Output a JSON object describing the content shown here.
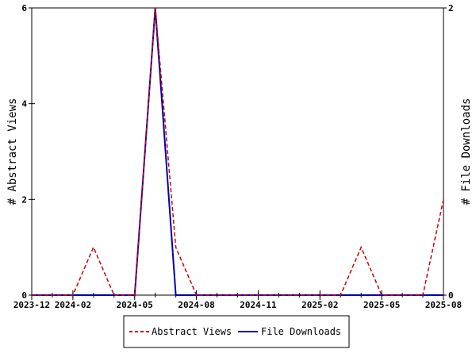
{
  "chart_data": {
    "type": "line",
    "title": "",
    "x": [
      "2023-12",
      "2024-01",
      "2024-02",
      "2024-03",
      "2024-04",
      "2024-05",
      "2024-06",
      "2024-07",
      "2024-08",
      "2024-09",
      "2024-10",
      "2024-11",
      "2024-12",
      "2025-01",
      "2025-02",
      "2025-03",
      "2025-04",
      "2025-05",
      "2025-06",
      "2025-07",
      "2025-08"
    ],
    "x_tick_labels": [
      "2023-12",
      "2024-02",
      "2024-05",
      "2024-08",
      "2024-11",
      "2025-02",
      "2025-05",
      "2025-08"
    ],
    "xlim": [
      "2023-12",
      "2025-08"
    ],
    "ylabel_left": "# Abstract Views",
    "ylabel_right": "# File Downloads",
    "ylim_left": [
      0,
      6
    ],
    "ylim_right": [
      0,
      2
    ],
    "yticks_left": [
      "0",
      "2",
      "4",
      "6"
    ],
    "yticks_right": [
      "0",
      "2"
    ],
    "grid": false,
    "legend": "bottom-center",
    "series": [
      {
        "name": "Abstract Views",
        "axis": "left",
        "color": "#cc0000",
        "style": "dashed",
        "values": [
          0,
          0,
          0,
          1,
          0,
          0,
          6,
          1,
          0,
          0,
          0,
          0,
          0,
          0,
          0,
          0,
          1,
          0,
          0,
          0,
          2
        ]
      },
      {
        "name": "File Downloads",
        "axis": "right",
        "color": "#0000aa",
        "style": "solid",
        "values": [
          0,
          0,
          0,
          0,
          0,
          0,
          2,
          0,
          0,
          0,
          0,
          0,
          0,
          0,
          0,
          0,
          0,
          0,
          0,
          0,
          0
        ]
      }
    ]
  }
}
